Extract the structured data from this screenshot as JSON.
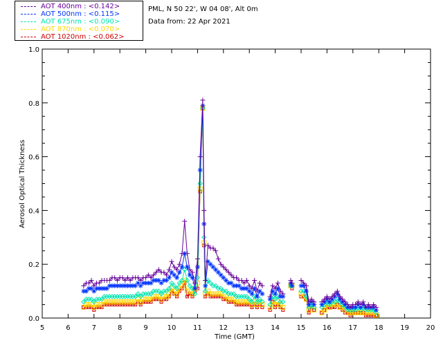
{
  "legend": [
    {
      "label": "AOT  400nm : <0.142>",
      "color": "#660099"
    },
    {
      "label": "AOT  500nm : <0.115>",
      "color": "#0033ff"
    },
    {
      "label": "AOT  675nm : <0.090>",
      "color": "#00e5b0"
    },
    {
      "label": "AOT  870nm : <0.070>",
      "color": "#ffd700"
    },
    {
      "label": "AOT 1020nm : <0.062>",
      "color": "#cc0000"
    }
  ],
  "info": {
    "location": "PML, N 50 22', W 04 08', Alt 0m",
    "date": "Data from: 22 Apr 2021"
  },
  "chart_data": {
    "type": "line",
    "xlabel": "Time (GMT)",
    "ylabel": "Aerosol Optical Thickness",
    "xlim": [
      5,
      20
    ],
    "ylim": [
      0,
      1.0
    ],
    "xticks": [
      "5",
      "6",
      "7",
      "8",
      "9",
      "10",
      "11",
      "12",
      "13",
      "14",
      "15",
      "16",
      "17",
      "18",
      "19",
      "20"
    ],
    "yticks": [
      "0.0",
      "0.2",
      "0.4",
      "0.6",
      "0.8",
      "1.0"
    ],
    "segments": [
      {
        "x": [
          6.6,
          6.7,
          6.8,
          6.9,
          7.0,
          7.1,
          7.2,
          7.3,
          7.4,
          7.5,
          7.6,
          7.7,
          7.8,
          7.9,
          8.0,
          8.1,
          8.2,
          8.3,
          8.4,
          8.5,
          8.6,
          8.7,
          8.8,
          8.9,
          9.0,
          9.1,
          9.2,
          9.3,
          9.4,
          9.5,
          9.6,
          9.7,
          9.8,
          9.9,
          10.0,
          10.1,
          10.2,
          10.3,
          10.4,
          10.5,
          10.6,
          10.7,
          10.8,
          10.9,
          11.0,
          11.1,
          11.2,
          11.25,
          11.3,
          11.4,
          11.5,
          11.6,
          11.7,
          11.8,
          11.9,
          12.0,
          12.1,
          12.2,
          12.3,
          12.4,
          12.5,
          12.6,
          12.7,
          12.8,
          12.9,
          13.0,
          13.1,
          13.2,
          13.3,
          13.4,
          13.5
        ],
        "series": [
          {
            "name": "AOT 400nm",
            "values": [
              0.12,
              0.13,
              0.13,
              0.14,
              0.12,
              0.13,
              0.13,
              0.14,
              0.14,
              0.14,
              0.14,
              0.15,
              0.15,
              0.14,
              0.15,
              0.15,
              0.14,
              0.15,
              0.14,
              0.15,
              0.15,
              0.15,
              0.14,
              0.15,
              0.15,
              0.16,
              0.15,
              0.16,
              0.17,
              0.18,
              0.17,
              0.17,
              0.16,
              0.18,
              0.21,
              0.19,
              0.18,
              0.2,
              0.24,
              0.36,
              0.24,
              0.18,
              0.17,
              0.13,
              0.22,
              0.6,
              0.81,
              0.4,
              0.14,
              0.27,
              0.26,
              0.26,
              0.25,
              0.22,
              0.2,
              0.19,
              0.18,
              0.17,
              0.16,
              0.15,
              0.15,
              0.14,
              0.14,
              0.13,
              0.14,
              0.12,
              0.11,
              0.14,
              0.1,
              0.13,
              0.12
            ]
          },
          {
            "name": "AOT 500nm",
            "values": [
              0.1,
              0.1,
              0.11,
              0.11,
              0.1,
              0.11,
              0.11,
              0.11,
              0.11,
              0.11,
              0.12,
              0.12,
              0.12,
              0.12,
              0.12,
              0.12,
              0.12,
              0.12,
              0.12,
              0.12,
              0.12,
              0.13,
              0.12,
              0.13,
              0.13,
              0.13,
              0.13,
              0.14,
              0.14,
              0.14,
              0.13,
              0.14,
              0.14,
              0.15,
              0.17,
              0.16,
              0.15,
              0.17,
              0.19,
              0.24,
              0.19,
              0.16,
              0.15,
              0.11,
              0.19,
              0.55,
              0.79,
              0.35,
              0.12,
              0.21,
              0.2,
              0.19,
              0.18,
              0.17,
              0.16,
              0.15,
              0.14,
              0.13,
              0.13,
              0.12,
              0.12,
              0.12,
              0.11,
              0.11,
              0.11,
              0.1,
              0.09,
              0.11,
              0.08,
              0.1,
              0.09
            ]
          },
          {
            "name": "AOT 675nm",
            "values": [
              0.06,
              0.07,
              0.07,
              0.07,
              0.06,
              0.07,
              0.07,
              0.07,
              0.08,
              0.08,
              0.08,
              0.08,
              0.08,
              0.08,
              0.08,
              0.08,
              0.08,
              0.08,
              0.08,
              0.08,
              0.08,
              0.09,
              0.08,
              0.09,
              0.09,
              0.09,
              0.09,
              0.1,
              0.1,
              0.1,
              0.09,
              0.1,
              0.1,
              0.11,
              0.13,
              0.12,
              0.11,
              0.13,
              0.14,
              0.18,
              0.14,
              0.12,
              0.11,
              0.09,
              0.15,
              0.5,
              0.78,
              0.3,
              0.1,
              0.14,
              0.13,
              0.12,
              0.12,
              0.11,
              0.11,
              0.1,
              0.1,
              0.09,
              0.09,
              0.09,
              0.08,
              0.08,
              0.08,
              0.08,
              0.08,
              0.07,
              0.06,
              0.08,
              0.06,
              0.07,
              0.06
            ]
          },
          {
            "name": "AOT 870nm",
            "values": [
              0.04,
              0.05,
              0.05,
              0.05,
              0.04,
              0.05,
              0.05,
              0.05,
              0.06,
              0.06,
              0.06,
              0.06,
              0.06,
              0.06,
              0.06,
              0.06,
              0.06,
              0.06,
              0.06,
              0.06,
              0.06,
              0.07,
              0.06,
              0.07,
              0.07,
              0.07,
              0.07,
              0.08,
              0.08,
              0.08,
              0.07,
              0.08,
              0.08,
              0.09,
              0.11,
              0.1,
              0.09,
              0.11,
              0.12,
              0.14,
              0.1,
              0.1,
              0.09,
              0.11,
              0.13,
              0.48,
              0.78,
              0.28,
              0.09,
              0.1,
              0.09,
              0.09,
              0.09,
              0.09,
              0.09,
              0.08,
              0.08,
              0.07,
              0.07,
              0.07,
              0.06,
              0.06,
              0.06,
              0.06,
              0.06,
              0.06,
              0.05,
              0.06,
              0.05,
              0.06,
              0.05
            ]
          },
          {
            "name": "AOT 1020nm",
            "values": [
              0.04,
              0.04,
              0.04,
              0.04,
              0.03,
              0.04,
              0.04,
              0.04,
              0.05,
              0.05,
              0.05,
              0.05,
              0.05,
              0.05,
              0.05,
              0.05,
              0.05,
              0.05,
              0.05,
              0.05,
              0.05,
              0.06,
              0.05,
              0.06,
              0.06,
              0.06,
              0.06,
              0.07,
              0.07,
              0.07,
              0.06,
              0.07,
              0.07,
              0.08,
              0.1,
              0.09,
              0.08,
              0.1,
              0.11,
              0.13,
              0.08,
              0.09,
              0.08,
              0.1,
              0.11,
              0.47,
              0.78,
              0.27,
              0.08,
              0.09,
              0.08,
              0.08,
              0.08,
              0.08,
              0.08,
              0.07,
              0.07,
              0.06,
              0.06,
              0.06,
              0.05,
              0.05,
              0.05,
              0.05,
              0.05,
              0.05,
              0.04,
              0.05,
              0.04,
              0.05,
              0.04
            ]
          }
        ]
      },
      {
        "x": [
          13.8,
          13.9,
          14.0,
          14.1,
          14.2,
          14.3
        ],
        "series": [
          {
            "name": "AOT 400nm",
            "values": [
              0.08,
              0.12,
              0.11,
              0.13,
              0.1,
              0.09
            ]
          },
          {
            "name": "AOT 500nm",
            "values": [
              0.07,
              0.1,
              0.09,
              0.11,
              0.08,
              0.08
            ]
          },
          {
            "name": "AOT 675nm",
            "values": [
              0.05,
              0.08,
              0.07,
              0.08,
              0.06,
              0.06
            ]
          },
          {
            "name": "AOT 870nm",
            "values": [
              0.04,
              0.06,
              0.05,
              0.06,
              0.05,
              0.04
            ]
          },
          {
            "name": "AOT 1020nm",
            "values": [
              0.03,
              0.06,
              0.04,
              0.05,
              0.04,
              0.03
            ]
          }
        ]
      },
      {
        "x": [
          14.6,
          14.65
        ],
        "series": [
          {
            "name": "AOT 400nm",
            "values": [
              0.14,
              0.13
            ]
          },
          {
            "name": "AOT 500nm",
            "values": [
              0.13,
              0.12
            ]
          },
          {
            "name": "AOT 675nm",
            "values": [
              0.12,
              0.12
            ]
          },
          {
            "name": "AOT 870nm",
            "values": [
              0.12,
              0.12
            ]
          },
          {
            "name": "AOT 1020nm",
            "values": [
              0.12,
              0.11
            ]
          }
        ]
      },
      {
        "x": [
          15.0,
          15.1,
          15.2,
          15.3,
          15.4,
          15.5
        ],
        "series": [
          {
            "name": "AOT 400nm",
            "values": [
              0.14,
              0.13,
              0.12,
              0.06,
              0.07,
              0.06
            ]
          },
          {
            "name": "AOT 500nm",
            "values": [
              0.12,
              0.12,
              0.1,
              0.05,
              0.06,
              0.05
            ]
          },
          {
            "name": "AOT 675nm",
            "values": [
              0.1,
              0.1,
              0.08,
              0.04,
              0.05,
              0.04
            ]
          },
          {
            "name": "AOT 870nm",
            "values": [
              0.09,
              0.08,
              0.07,
              0.03,
              0.05,
              0.03
            ]
          },
          {
            "name": "AOT 1020nm",
            "values": [
              0.08,
              0.08,
              0.07,
              0.02,
              0.04,
              0.03
            ]
          }
        ]
      },
      {
        "x": [
          15.8,
          15.9,
          16.0,
          16.1,
          16.2,
          16.3,
          16.4,
          16.5,
          16.6,
          16.7,
          16.8,
          16.9,
          17.0,
          17.1,
          17.2,
          17.3,
          17.4,
          17.5,
          17.6,
          17.7,
          17.8,
          17.9
        ],
        "series": [
          {
            "name": "AOT 400nm",
            "values": [
              0.06,
              0.07,
              0.08,
              0.07,
              0.08,
              0.09,
              0.1,
              0.08,
              0.07,
              0.06,
              0.05,
              0.04,
              0.05,
              0.05,
              0.06,
              0.05,
              0.06,
              0.04,
              0.05,
              0.04,
              0.05,
              0.04
            ]
          },
          {
            "name": "AOT 500nm",
            "values": [
              0.05,
              0.06,
              0.07,
              0.06,
              0.07,
              0.08,
              0.09,
              0.07,
              0.06,
              0.05,
              0.04,
              0.04,
              0.04,
              0.04,
              0.05,
              0.04,
              0.05,
              0.04,
              0.04,
              0.04,
              0.04,
              0.03
            ]
          },
          {
            "name": "AOT 675nm",
            "values": [
              0.04,
              0.05,
              0.06,
              0.05,
              0.06,
              0.06,
              0.07,
              0.06,
              0.05,
              0.04,
              0.03,
              0.03,
              0.03,
              0.03,
              0.04,
              0.03,
              0.04,
              0.03,
              0.03,
              0.03,
              0.03,
              0.02
            ]
          },
          {
            "name": "AOT 870nm",
            "values": [
              0.02,
              0.03,
              0.05,
              0.04,
              0.05,
              0.05,
              0.05,
              0.04,
              0.04,
              0.03,
              0.02,
              0.02,
              0.02,
              0.02,
              0.02,
              0.02,
              0.02,
              0.02,
              0.02,
              0.02,
              0.02,
              0.01
            ]
          },
          {
            "name": "AOT 1020nm",
            "values": [
              0.02,
              0.03,
              0.04,
              0.04,
              0.04,
              0.04,
              0.05,
              0.04,
              0.03,
              0.02,
              0.02,
              0.01,
              0.02,
              0.02,
              0.02,
              0.02,
              0.02,
              0.01,
              0.01,
              0.01,
              0.01,
              0.01
            ]
          }
        ]
      }
    ]
  }
}
